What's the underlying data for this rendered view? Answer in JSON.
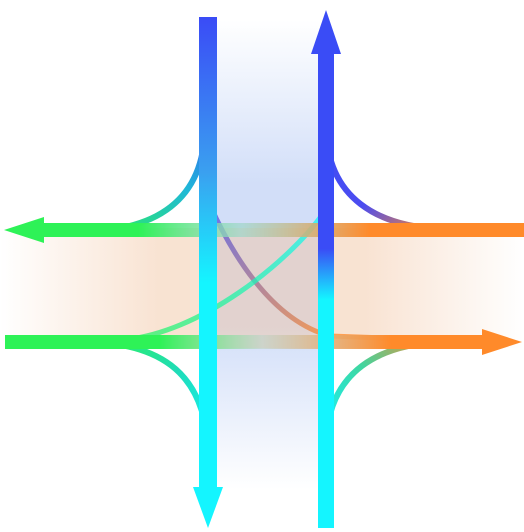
{
  "diagram": {
    "type": "traffic-intersection-flow",
    "colors": {
      "north": "#3a4cf6",
      "north_light": "#3aa0f0",
      "south": "#14f5ff",
      "west": "#2ef257",
      "east": "#ff8a2a",
      "vertical_band": "#9ab6f0",
      "horizontal_band": "#f2c7a6"
    },
    "flows": [
      {
        "id": "southbound-through",
        "name": "southbound-through-arrow"
      },
      {
        "id": "northbound-through",
        "name": "northbound-through-arrow"
      },
      {
        "id": "westbound-through",
        "name": "westbound-through-arrow"
      },
      {
        "id": "eastbound-through",
        "name": "eastbound-through-arrow"
      },
      {
        "id": "south-to-west-turn",
        "name": "south-to-west-turn-curve"
      },
      {
        "id": "north-to-east-turn",
        "name": "north-to-east-turn-curve"
      },
      {
        "id": "west-to-south-turn",
        "name": "west-to-south-turn-curve"
      },
      {
        "id": "east-to-north-turn",
        "name": "east-to-north-turn-curve"
      },
      {
        "id": "crossing-turns",
        "name": "crossing-turn-curves"
      }
    ]
  }
}
